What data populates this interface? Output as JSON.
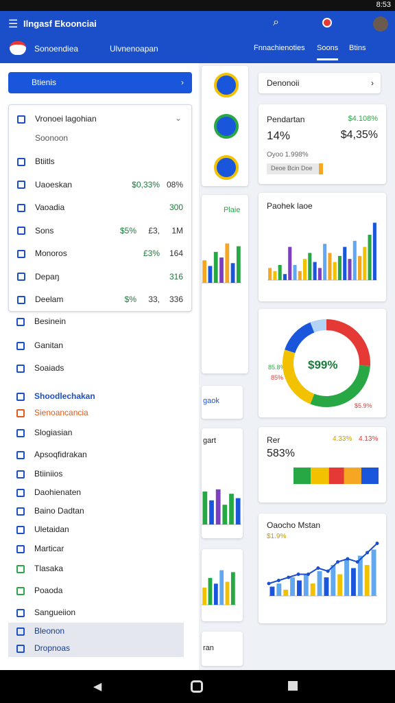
{
  "status": {
    "time": "8:53"
  },
  "header": {
    "title": "Ilngasf Ekoonciai",
    "subtitle_left": "Sonoendiea",
    "subtitle_right": "Ulvnenoapan",
    "tabs": [
      "Fnnachienoties",
      "Soons",
      "Btins"
    ]
  },
  "search": {
    "label": "Btienis"
  },
  "dropdown": {
    "title": "Vronoei lagohian",
    "subtitle": "Soonoon",
    "items": [
      {
        "label": "Btiitls",
        "values": []
      },
      {
        "label": "Uaoeskan",
        "values": [
          "$0,33%",
          "08%"
        ]
      },
      {
        "label": "Vaoadia",
        "values": [
          "300"
        ]
      },
      {
        "label": "Sons",
        "values": [
          "$5%",
          "£3,",
          "1M"
        ]
      },
      {
        "label": "Monoros",
        "values": [
          "£3%",
          "164"
        ]
      },
      {
        "label": "Depaŋ",
        "values": [
          "316"
        ]
      },
      {
        "label": "Deelam",
        "values": [
          "$%",
          "33,",
          "336"
        ]
      }
    ]
  },
  "list": [
    "Besinein",
    "Ganitan",
    "Soaiads",
    "Shoodlechakan",
    "Sienoancancia",
    "Slogiasian",
    "Apsoqfidrakan",
    "Btiiniios",
    "Daohienaten",
    "Baino Dadtan",
    "Uletaidan",
    "Marticar",
    "Tlasaka",
    "Poaoda",
    "Sangueiion",
    "Bleonon",
    "Dropnoas"
  ],
  "middle": {
    "label1": "Plaie",
    "label2": "gaok",
    "label3": "gart",
    "label4": "ran"
  },
  "right": {
    "search": "Denonoii",
    "card1": {
      "title": "Pendartan",
      "badge": "$4.108%",
      "value1": "14%",
      "value2": "$4,35%",
      "note": "Oyoo 1.998%",
      "button": "Deoe Bcin Doe"
    },
    "card2": {
      "title": "Paohek laoe"
    },
    "card3": {
      "center": "$99%",
      "left1": "85.8%",
      "left2": "85%",
      "right1": "$5.9%"
    },
    "card4": {
      "title": "Rer",
      "value": "583%",
      "badge1": "4.33%",
      "badge2": "4.13%"
    },
    "card5": {
      "title": "Oaocho Mstan",
      "badge": "$1.9%"
    }
  },
  "charts": [
    {
      "type": "bar",
      "palette": [
        "#f5a623",
        "#f2c200",
        "#28a745",
        "#1a56db",
        "#7b3fbf",
        "#62a8f0"
      ],
      "ylim": [
        0,
        100
      ],
      "values": [
        20,
        15,
        25,
        10,
        55,
        25,
        15,
        35,
        45,
        30,
        20,
        60,
        45,
        30,
        40,
        55,
        35,
        65,
        40,
        55,
        75,
        95
      ]
    },
    {
      "type": "bar",
      "palette": [
        "#f5a623",
        "#1a56db",
        "#28a745",
        "#7b3fbf"
      ],
      "ylim": [
        0,
        100
      ],
      "values": [
        40,
        30,
        55,
        45,
        70,
        35,
        65
      ]
    },
    {
      "type": "bar",
      "palette": [
        "#28a745",
        "#1a56db",
        "#7b3fbf",
        "#28a745"
      ],
      "ylim": [
        0,
        100
      ],
      "values": [
        75,
        55,
        80,
        45,
        70,
        60
      ]
    },
    {
      "type": "bar",
      "palette": [
        "#f2c200",
        "#28a745",
        "#1a56db",
        "#62a8f0"
      ],
      "ylim": [
        0,
        100
      ],
      "values": [
        45,
        70,
        55,
        90,
        60,
        85
      ]
    },
    {
      "type": "donut",
      "colors": [
        "#e53935",
        "#28a745",
        "#f2c200",
        "#1a56db",
        "#b3d4f5"
      ],
      "values": [
        26,
        30,
        24,
        14,
        6
      ]
    },
    {
      "type": "hstack",
      "colors": [
        "#28a745",
        "#f2c200",
        "#e53935",
        "#f5a623",
        "#1a56db"
      ],
      "values": [
        17,
        18,
        15,
        17,
        17
      ]
    },
    {
      "type": "barline",
      "palette": [
        "#1a56db",
        "#62a8f0",
        "#f2c200",
        "#62a8f0"
      ],
      "ylim": [
        0,
        100
      ],
      "values": [
        15,
        20,
        10,
        30,
        25,
        35,
        20,
        40,
        30,
        50,
        35,
        60,
        45,
        65,
        50,
        75
      ],
      "line": [
        20,
        25,
        30,
        35,
        35,
        45,
        40,
        55,
        60,
        55,
        70,
        85
      ]
    }
  ]
}
